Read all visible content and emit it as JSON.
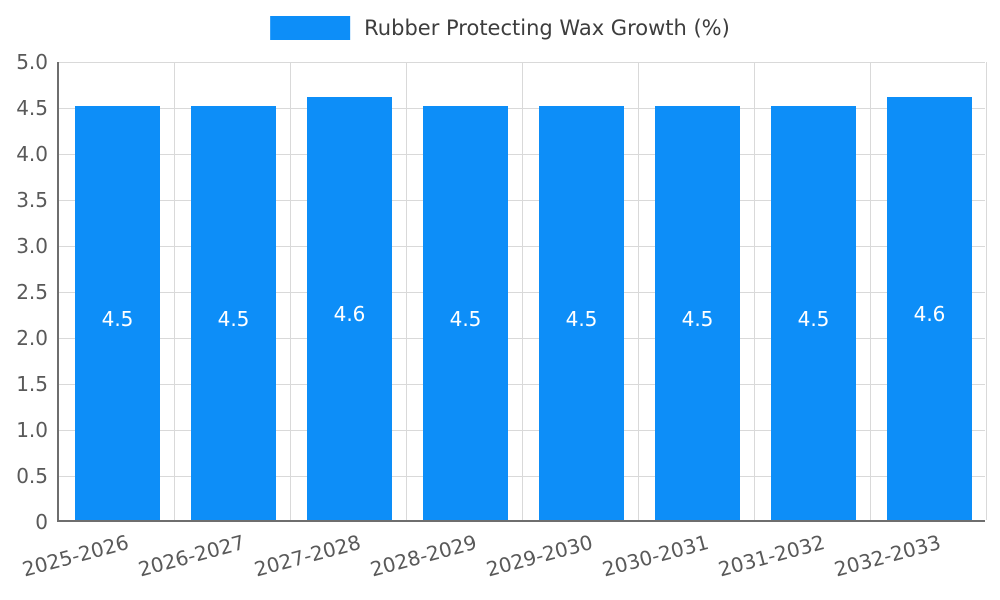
{
  "legend": {
    "label": "Rubber Protecting Wax Growth (%)"
  },
  "chart_data": {
    "type": "bar",
    "title": "Rubber Protecting Wax Growth (%)",
    "categories": [
      "2025-2026",
      "2026-2027",
      "2027-2028",
      "2028-2029",
      "2029-2030",
      "2030-2031",
      "2031-2032",
      "2032-2033"
    ],
    "values": [
      4.5,
      4.5,
      4.6,
      4.5,
      4.5,
      4.5,
      4.5,
      4.6
    ],
    "bar_labels": [
      "4.5",
      "4.5",
      "4.6",
      "4.5",
      "4.5",
      "4.5",
      "4.5",
      "4.6"
    ],
    "xlabel": "",
    "ylabel": "",
    "ylim": [
      0,
      5
    ],
    "yticks": [
      0,
      0.5,
      1.0,
      1.5,
      2.0,
      2.5,
      3.0,
      3.5,
      4.0,
      4.5,
      5.0
    ],
    "ytick_labels": [
      "0",
      "0.5",
      "1.0",
      "1.5",
      "2.0",
      "2.5",
      "3.0",
      "3.5",
      "4.0",
      "4.5",
      "5.0"
    ],
    "grid": true,
    "legend_position": "top-center",
    "colors": {
      "bar": "#0d8ef8",
      "grid": "#d9d9d9",
      "axis": "#6e6e6e",
      "tick_text": "#595959",
      "bar_label_text": "#ffffff",
      "title_text": "#3d3d3d"
    }
  }
}
